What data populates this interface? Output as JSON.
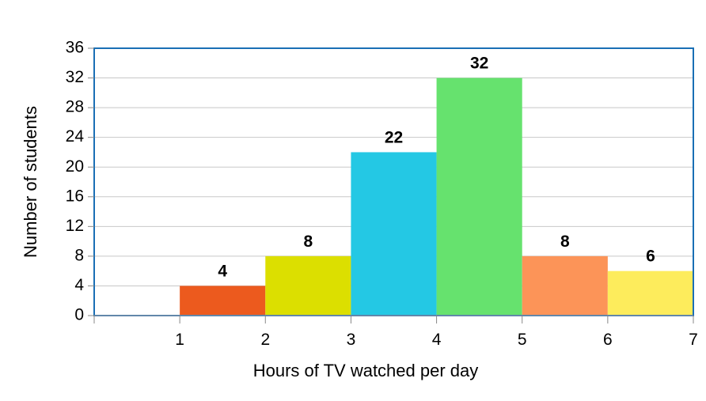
{
  "chart_data": {
    "type": "bar",
    "xlabel": "Hours of TV watched per day",
    "ylabel": "Number of students",
    "x_ticks": [
      "1",
      "2",
      "3",
      "4",
      "5",
      "6",
      "7"
    ],
    "y_ticks": [
      "0",
      "4",
      "8",
      "12",
      "16",
      "20",
      "24",
      "28",
      "32",
      "36"
    ],
    "ylim": [
      0,
      36
    ],
    "xlim": [
      0,
      7
    ],
    "grid": true,
    "bins": [
      {
        "x0": 1,
        "x1": 2,
        "value": 4,
        "label": "4",
        "color": "#ec5a1e"
      },
      {
        "x0": 2,
        "x1": 3,
        "value": 8,
        "label": "8",
        "color": "#dcdf00"
      },
      {
        "x0": 3,
        "x1": 4,
        "value": 22,
        "label": "22",
        "color": "#24c8e4"
      },
      {
        "x0": 4,
        "x1": 5,
        "value": 32,
        "label": "32",
        "color": "#66e26e"
      },
      {
        "x0": 5,
        "x1": 6,
        "value": 8,
        "label": "8",
        "color": "#fc9458"
      },
      {
        "x0": 6,
        "x1": 7,
        "value": 6,
        "label": "6",
        "color": "#fdec5c"
      }
    ],
    "plot_border_color": "#1a6fb5"
  }
}
